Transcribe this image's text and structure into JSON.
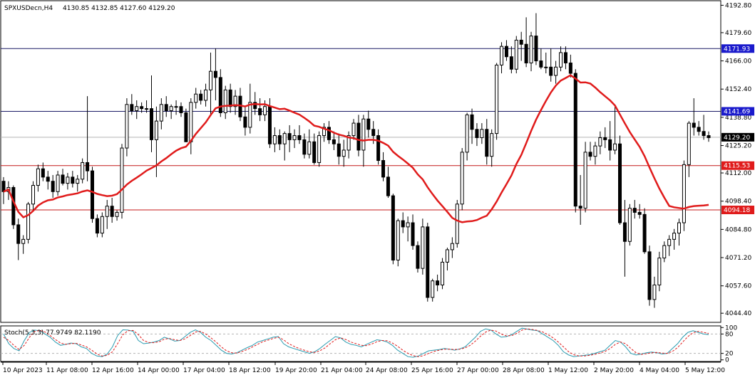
{
  "header": {
    "symbol": "SPXUSDecn,H4",
    "ohlc": "4130.85 4132.85 4127.60 4129.20"
  },
  "indicator_header": "Stoch(5,3,3) 77.9749 82.1190",
  "colors": {
    "bull_body": "#ffffff",
    "bear_body": "#000000",
    "ma": "#e01b1b",
    "stoch_main": "#2a9bb0",
    "stoch_signal": "#e01b1b",
    "level_blue_line": "#1a1a66",
    "level_red_line": "#c41a1a",
    "price_badge_blue": "#1a1acc",
    "price_badge_red": "#e01b1b",
    "current_badge": "#000000"
  },
  "chart_data": [
    {
      "type": "candlestick",
      "price_axis": {
        "ylim": [
          4040,
          4195
        ],
        "ticks": [
          "4192.80",
          "4179.60",
          "4166.00",
          "4152.40",
          "4138.80",
          "4125.20",
          "4112.00",
          "4098.40",
          "4084.80",
          "4071.20",
          "4057.60",
          "4044.40"
        ]
      },
      "x_labels": [
        "10 Apr 2023",
        "11 Apr 08:00",
        "12 Apr 16:00",
        "14 Apr 00:00",
        "17 Apr 04:00",
        "18 Apr 12:00",
        "19 Apr 20:00",
        "21 Apr 04:00",
        "24 Apr 08:00",
        "25 Apr 16:00",
        "27 Apr 00:00",
        "28 Apr 08:00",
        "1 May 12:00",
        "2 May 20:00",
        "4 May 04:00",
        "5 May 12:00"
      ],
      "levels": [
        {
          "price": 4171.93,
          "label": "4171.93",
          "style": "blue"
        },
        {
          "price": 4141.69,
          "label": "4141.69",
          "style": "blue"
        },
        {
          "price": 4115.53,
          "label": "4115.53",
          "style": "red"
        },
        {
          "price": 4094.18,
          "label": "4094.18",
          "style": "red"
        }
      ],
      "current_price": {
        "price": 4129.2,
        "label": "4129.20"
      },
      "candles": [
        [
          4108,
          4110,
          4097,
          4103
        ],
        [
          4103,
          4108,
          4099,
          4105
        ],
        [
          4105,
          4106,
          4085,
          4087
        ],
        [
          4087,
          4090,
          4070,
          4078
        ],
        [
          4078,
          4082,
          4073,
          4080
        ],
        [
          4080,
          4098,
          4078,
          4097
        ],
        [
          4097,
          4108,
          4094,
          4106
        ],
        [
          4106,
          4116,
          4103,
          4114
        ],
        [
          4114,
          4117,
          4108,
          4110
        ],
        [
          4110,
          4113,
          4104,
          4108
        ],
        [
          4108,
          4111,
          4100,
          4103
        ],
        [
          4103,
          4113,
          4101,
          4111
        ],
        [
          4111,
          4114,
          4106,
          4107
        ],
        [
          4107,
          4112,
          4104,
          4110
        ],
        [
          4110,
          4113,
          4105,
          4107
        ],
        [
          4107,
          4111,
          4103,
          4109
        ],
        [
          4109,
          4119,
          4107,
          4117
        ],
        [
          4117,
          4149,
          4108,
          4113
        ],
        [
          4113,
          4115,
          4088,
          4090
        ],
        [
          4090,
          4092,
          4081,
          4083
        ],
        [
          4083,
          4093,
          4081,
          4091
        ],
        [
          4091,
          4099,
          4085,
          4096
        ],
        [
          4096,
          4100,
          4088,
          4091
        ],
        [
          4091,
          4094,
          4089,
          4093
        ],
        [
          4093,
          4126,
          4090,
          4124
        ],
        [
          4124,
          4148,
          4120,
          4145
        ],
        [
          4145,
          4150,
          4140,
          4142
        ],
        [
          4142,
          4147,
          4138,
          4144
        ],
        [
          4144,
          4146,
          4141,
          4143
        ],
        [
          4143,
          4147,
          4141,
          4143
        ],
        [
          4143,
          4159,
          4122,
          4128
        ],
        [
          4128,
          4144,
          4110,
          4137
        ],
        [
          4137,
          4148,
          4133,
          4145
        ],
        [
          4145,
          4149,
          4139,
          4142
        ],
        [
          4142,
          4145,
          4138,
          4144
        ],
        [
          4144,
          4147,
          4140,
          4144
        ],
        [
          4144,
          4146,
          4139,
          4141
        ],
        [
          4141,
          4143,
          4127,
          4127
        ],
        [
          4127,
          4148,
          4121,
          4146
        ],
        [
          4146,
          4153,
          4143,
          4150
        ],
        [
          4150,
          4152,
          4145,
          4147
        ],
        [
          4147,
          4155,
          4144,
          4152
        ],
        [
          4152,
          4170,
          4140,
          4161
        ],
        [
          4161,
          4172,
          4147,
          4158
        ],
        [
          4158,
          4162,
          4139,
          4141
        ],
        [
          4141,
          4154,
          4138,
          4152
        ],
        [
          4152,
          4155,
          4141,
          4144
        ],
        [
          4144,
          4152,
          4140,
          4149
        ],
        [
          4149,
          4153,
          4137,
          4139
        ],
        [
          4139,
          4144,
          4130,
          4134
        ],
        [
          4134,
          4155,
          4131,
          4146
        ],
        [
          4146,
          4151,
          4140,
          4143
        ],
        [
          4143,
          4148,
          4137,
          4140
        ],
        [
          4140,
          4147,
          4137,
          4144
        ],
        [
          4144,
          4148,
          4124,
          4126
        ],
        [
          4126,
          4134,
          4122,
          4130
        ],
        [
          4130,
          4133,
          4123,
          4126
        ],
        [
          4126,
          4132,
          4118,
          4131
        ],
        [
          4131,
          4135,
          4122,
          4128
        ],
        [
          4128,
          4133,
          4124,
          4130
        ],
        [
          4130,
          4135,
          4126,
          4128
        ],
        [
          4128,
          4131,
          4119,
          4121
        ],
        [
          4121,
          4133,
          4119,
          4127
        ],
        [
          4127,
          4131,
          4116,
          4117
        ],
        [
          4117,
          4132,
          4115,
          4130
        ],
        [
          4130,
          4136,
          4127,
          4134
        ],
        [
          4134,
          4137,
          4126,
          4128
        ],
        [
          4128,
          4132,
          4123,
          4126
        ],
        [
          4126,
          4131,
          4116,
          4120
        ],
        [
          4120,
          4128,
          4115,
          4123
        ],
        [
          4123,
          4132,
          4119,
          4130
        ],
        [
          4130,
          4138,
          4128,
          4136
        ],
        [
          4136,
          4140,
          4120,
          4123
        ],
        [
          4123,
          4140,
          4115,
          4138
        ],
        [
          4138,
          4142,
          4129,
          4133
        ],
        [
          4133,
          4137,
          4126,
          4130
        ],
        [
          4130,
          4133,
          4116,
          4118
        ],
        [
          4118,
          4122,
          4108,
          4110
        ],
        [
          4110,
          4115,
          4100,
          4101
        ],
        [
          4101,
          4102,
          4068,
          4070
        ],
        [
          4070,
          4090,
          4067,
          4089
        ],
        [
          4089,
          4093,
          4083,
          4086
        ],
        [
          4086,
          4091,
          4079,
          4088
        ],
        [
          4088,
          4092,
          4075,
          4077
        ],
        [
          4077,
          4079,
          4064,
          4066
        ],
        [
          4066,
          4090,
          4063,
          4086
        ],
        [
          4086,
          4088,
          4050,
          4052
        ],
        [
          4052,
          4061,
          4050,
          4060
        ],
        [
          4060,
          4063,
          4055,
          4058
        ],
        [
          4058,
          4071,
          4056,
          4069
        ],
        [
          4069,
          4076,
          4065,
          4075
        ],
        [
          4075,
          4081,
          4071,
          4078
        ],
        [
          4078,
          4099,
          4076,
          4097
        ],
        [
          4097,
          4124,
          4094,
          4122
        ],
        [
          4122,
          4141,
          4118,
          4140
        ],
        [
          4140,
          4143,
          4126,
          4133
        ],
        [
          4133,
          4136,
          4125,
          4129
        ],
        [
          4129,
          4136,
          4126,
          4133
        ],
        [
          4133,
          4138,
          4116,
          4120
        ],
        [
          4120,
          4133,
          4115,
          4131
        ],
        [
          4131,
          4165,
          4128,
          4164
        ],
        [
          4164,
          4175,
          4160,
          4173
        ],
        [
          4173,
          4176,
          4166,
          4168
        ],
        [
          4168,
          4173,
          4160,
          4162
        ],
        [
          4162,
          4178,
          4160,
          4176
        ],
        [
          4176,
          4180,
          4166,
          4174
        ],
        [
          4174,
          4187,
          4163,
          4165
        ],
        [
          4165,
          4180,
          4161,
          4178
        ],
        [
          4178,
          4189,
          4164,
          4166
        ],
        [
          4166,
          4172,
          4162,
          4163
        ],
        [
          4163,
          4170,
          4160,
          4163
        ],
        [
          4163,
          4172,
          4156,
          4159
        ],
        [
          4159,
          4166,
          4155,
          4163
        ],
        [
          4163,
          4173,
          4161,
          4170
        ],
        [
          4170,
          4173,
          4162,
          4165
        ],
        [
          4165,
          4169,
          4158,
          4160
        ],
        [
          4160,
          4162,
          4093,
          4096
        ],
        [
          4096,
          4111,
          4087,
          4095
        ],
        [
          4095,
          4127,
          4093,
          4122
        ],
        [
          4122,
          4127,
          4118,
          4120
        ],
        [
          4120,
          4127,
          4116,
          4125
        ],
        [
          4125,
          4132,
          4121,
          4129
        ],
        [
          4129,
          4134,
          4124,
          4128
        ],
        [
          4128,
          4137,
          4118,
          4123
        ],
        [
          4123,
          4144,
          4121,
          4126
        ],
        [
          4126,
          4130,
          4087,
          4088
        ],
        [
          4088,
          4099,
          4062,
          4079
        ],
        [
          4079,
          4097,
          4077,
          4095
        ],
        [
          4095,
          4099,
          4090,
          4093
        ],
        [
          4093,
          4097,
          4090,
          4092
        ],
        [
          4092,
          4095,
          4073,
          4074
        ],
        [
          4074,
          4077,
          4048,
          4051
        ],
        [
          4051,
          4062,
          4047,
          4058
        ],
        [
          4058,
          4074,
          4055,
          4071
        ],
        [
          4071,
          4079,
          4069,
          4077
        ],
        [
          4077,
          4082,
          4072,
          4080
        ],
        [
          4080,
          4085,
          4075,
          4083
        ],
        [
          4083,
          4090,
          4077,
          4088
        ],
        [
          4088,
          4118,
          4084,
          4116
        ],
        [
          4116,
          4137,
          4110,
          4136
        ],
        [
          4136,
          4148,
          4130,
          4134
        ],
        [
          4134,
          4137,
          4130,
          4132
        ],
        [
          4132,
          4140,
          4128,
          4130
        ],
        [
          4130,
          4132,
          4127,
          4129
        ]
      ],
      "ma": {
        "period": 20,
        "color": "#e01b1b"
      }
    },
    {
      "type": "line",
      "title": "Stoch(5,3,3) 77.9749 82.1190",
      "ylim": [
        -5,
        105
      ],
      "yticks": [
        "100",
        "80",
        "20",
        "0"
      ],
      "levels": [
        80,
        20
      ],
      "series": [
        {
          "values": [
            80,
            50,
            35,
            28,
            60,
            85,
            92,
            90,
            80,
            70,
            55,
            45,
            48,
            52,
            50,
            40,
            35,
            20,
            12,
            10,
            18,
            40,
            75,
            93,
            92,
            88,
            60,
            50,
            52,
            55,
            60,
            70,
            65,
            58,
            60,
            72,
            85,
            93,
            85,
            70,
            60,
            45,
            30,
            20,
            18,
            22,
            30,
            38,
            45,
            55,
            60,
            65,
            70,
            72,
            50,
            40,
            35,
            30,
            25,
            20,
            25,
            35,
            48,
            60,
            72,
            68,
            55,
            48,
            45,
            40,
            48,
            55,
            62,
            60,
            55,
            45,
            30,
            20,
            10,
            8,
            12,
            20,
            28,
            30,
            32,
            35,
            33,
            30,
            34,
            40,
            55,
            70,
            88,
            96,
            92,
            80,
            70,
            72,
            78,
            88,
            98,
            95,
            92,
            90,
            80,
            70,
            60,
            45,
            25,
            15,
            10,
            12,
            14,
            16,
            20,
            25,
            30,
            45,
            60,
            55,
            40,
            20,
            15,
            18,
            22,
            24,
            22,
            18,
            20,
            35,
            50,
            70,
            85,
            90,
            85,
            80,
            78
          ]
        },
        {
          "values": [
            70,
            60,
            45,
            32,
            45,
            70,
            88,
            91,
            86,
            75,
            63,
            52,
            48,
            50,
            51,
            46,
            40,
            30,
            18,
            12,
            14,
            25,
            50,
            78,
            90,
            91,
            78,
            60,
            54,
            53,
            56,
            64,
            66,
            62,
            60,
            65,
            75,
            86,
            88,
            80,
            68,
            55,
            40,
            28,
            22,
            21,
            26,
            32,
            40,
            48,
            56,
            61,
            66,
            70,
            62,
            50,
            42,
            35,
            30,
            25,
            23,
            28,
            37,
            50,
            62,
            68,
            63,
            55,
            50,
            45,
            44,
            49,
            56,
            60,
            59,
            52,
            42,
            30,
            20,
            13,
            10,
            13,
            20,
            26,
            30,
            33,
            33,
            32,
            33,
            37,
            45,
            58,
            73,
            86,
            92,
            89,
            80,
            74,
            75,
            82,
            92,
            96,
            94,
            91,
            86,
            78,
            68,
            55,
            40,
            25,
            16,
            12,
            12,
            14,
            17,
            21,
            26,
            35,
            48,
            55,
            50,
            35,
            22,
            17,
            19,
            22,
            23,
            21,
            20,
            26,
            38,
            55,
            72,
            84,
            88,
            85,
            82
          ]
        }
      ]
    }
  ]
}
